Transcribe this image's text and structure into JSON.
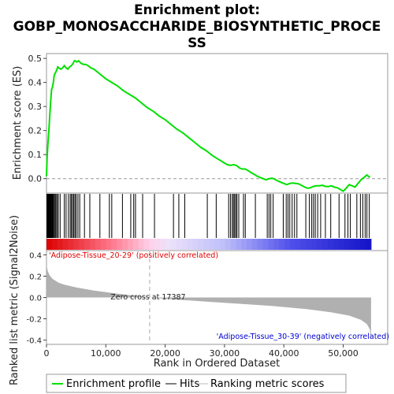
{
  "chart_data": {
    "type": "line",
    "title_line1": "Enrichment plot:",
    "title_line2": "GOBP_MONOSACCHARIDE_BIOSYNTHETIC_PROCE",
    "title_line3": "SS",
    "es_panel": {
      "ylabel": "Enrichment score (ES)",
      "ylim": [
        -0.06,
        0.52
      ],
      "yticks": [
        0.0,
        0.1,
        0.2,
        0.3,
        0.4,
        0.5
      ],
      "ytick_labels": [
        "0.0",
        "0.1",
        "0.2",
        "0.3",
        "0.4",
        "0.5"
      ],
      "series": [
        {
          "color": "#00e000",
          "x": [
            0,
            100,
            250,
            400,
            550,
            700,
            850,
            1000,
            1150,
            1300,
            1500,
            1700,
            1900,
            2100,
            2400,
            2700,
            3000,
            3300,
            3600,
            3900,
            4200,
            4500,
            4700,
            4900,
            5100,
            5400,
            5800,
            6200,
            6600,
            7000,
            7500,
            8000,
            9000,
            10000,
            11000,
            12000,
            13000,
            14000,
            15000,
            16000,
            17000,
            18000,
            19000,
            20000,
            21000,
            22000,
            23000,
            24000,
            25000,
            26000,
            27000,
            28000,
            29000,
            30000,
            30500,
            31000,
            31500,
            32000,
            32500,
            33000,
            33500,
            34000,
            34500,
            35000,
            35500,
            36000,
            36500,
            37000,
            37500,
            38000,
            38500,
            39000,
            39500,
            40000,
            40500,
            41000,
            41500,
            42000,
            42500,
            43000,
            43500,
            44000,
            44500,
            45000,
            45500,
            46000,
            46500,
            47000,
            47500,
            48000,
            48500,
            49000,
            49500,
            50000,
            50500,
            51000,
            51500,
            52000,
            52500,
            53000,
            53500,
            54000,
            54500
          ],
          "y": [
            0.01,
            0.09,
            0.15,
            0.2,
            0.26,
            0.32,
            0.37,
            0.38,
            0.4,
            0.43,
            0.44,
            0.45,
            0.465,
            0.46,
            0.455,
            0.46,
            0.47,
            0.46,
            0.455,
            0.465,
            0.47,
            0.48,
            0.49,
            0.49,
            0.485,
            0.49,
            0.48,
            0.475,
            0.475,
            0.47,
            0.46,
            0.455,
            0.435,
            0.415,
            0.4,
            0.385,
            0.365,
            0.35,
            0.335,
            0.315,
            0.295,
            0.28,
            0.26,
            0.245,
            0.225,
            0.205,
            0.19,
            0.17,
            0.15,
            0.13,
            0.115,
            0.095,
            0.08,
            0.065,
            0.058,
            0.055,
            0.058,
            0.055,
            0.045,
            0.04,
            0.04,
            0.033,
            0.025,
            0.018,
            0.01,
            0.005,
            0.0,
            -0.005,
            0.0,
            0.002,
            -0.003,
            -0.01,
            -0.015,
            -0.02,
            -0.025,
            -0.02,
            -0.018,
            -0.02,
            -0.022,
            -0.028,
            -0.035,
            -0.04,
            -0.038,
            -0.032,
            -0.03,
            -0.03,
            -0.028,
            -0.032,
            -0.033,
            -0.03,
            -0.035,
            -0.038,
            -0.045,
            -0.052,
            -0.04,
            -0.025,
            -0.03,
            -0.035,
            -0.02,
            -0.005,
            0.005,
            0.015,
            0.005
          ]
        }
      ]
    },
    "hits_panel": {
      "hit_positions": [
        80,
        150,
        220,
        300,
        370,
        450,
        520,
        600,
        680,
        760,
        850,
        950,
        1050,
        1150,
        1300,
        1450,
        1600,
        1800,
        2000,
        2300,
        3000,
        3300,
        3700,
        4000,
        4200,
        4400,
        4600,
        4800,
        5000,
        5300,
        5600,
        6400,
        7300,
        9000,
        10600,
        11000,
        12800,
        14200,
        14700,
        15000,
        16200,
        18200,
        21400,
        22300,
        23300,
        27100,
        28600,
        30700,
        31000,
        31300,
        31500,
        31700,
        31900,
        32100,
        32400,
        33200,
        33500,
        35200,
        37200,
        37500,
        37800,
        38200,
        39900,
        40400,
        40700,
        41000,
        41400,
        41800,
        42200,
        43700,
        44300,
        44700,
        45000,
        45300,
        45700,
        46200,
        47000,
        47900,
        49300,
        50300,
        50800,
        51200,
        52300,
        52900,
        53300,
        53700,
        54000,
        54400
      ]
    },
    "metric_panel": {
      "ylabel": "Ranked list metric (Signal2Noise)",
      "ylim": [
        -0.44,
        0.44
      ],
      "yticks": [
        -0.4,
        -0.2,
        0.0,
        0.2,
        0.4
      ],
      "ytick_labels": [
        "-0.4",
        "-0.2",
        "0.0",
        "0.2",
        "0.4"
      ],
      "curve_x": [
        0,
        200,
        500,
        1000,
        2000,
        3000,
        5000,
        8000,
        12000,
        17387,
        22000,
        30000,
        38000,
        44000,
        48000,
        51000,
        53000,
        54000,
        54500,
        54700
      ],
      "curve_y": [
        0.31,
        0.25,
        0.21,
        0.175,
        0.14,
        0.12,
        0.095,
        0.065,
        0.035,
        0.0,
        -0.02,
        -0.05,
        -0.08,
        -0.11,
        -0.14,
        -0.17,
        -0.21,
        -0.25,
        -0.3,
        -0.4
      ],
      "zero_cross_label": "Zero cross at 17387",
      "zero_cross_x": 17387,
      "pos_label": "'Adipose-Tissue_20-29' (positively correlated)",
      "neg_label": "'Adipose-Tissue_30-39' (negatively correlated)"
    },
    "xaxis": {
      "label": "Rank in Ordered Dataset",
      "xlim": [
        0,
        57500
      ],
      "ticks": [
        0,
        10000,
        20000,
        30000,
        40000,
        50000
      ],
      "tick_labels": [
        "0",
        "10,000",
        "20,000",
        "30,000",
        "40,000",
        "50,000"
      ],
      "list_length": 54700
    },
    "legend": {
      "placement": "bottom",
      "entries": [
        {
          "label": "Enrichment profile",
          "color": "#00e000",
          "kind": "line"
        },
        {
          "label": "Hits",
          "color": "#000000",
          "kind": "line"
        },
        {
          "label": "Ranking metric scores",
          "color": "#bbbbbb",
          "kind": "line"
        }
      ]
    }
  }
}
